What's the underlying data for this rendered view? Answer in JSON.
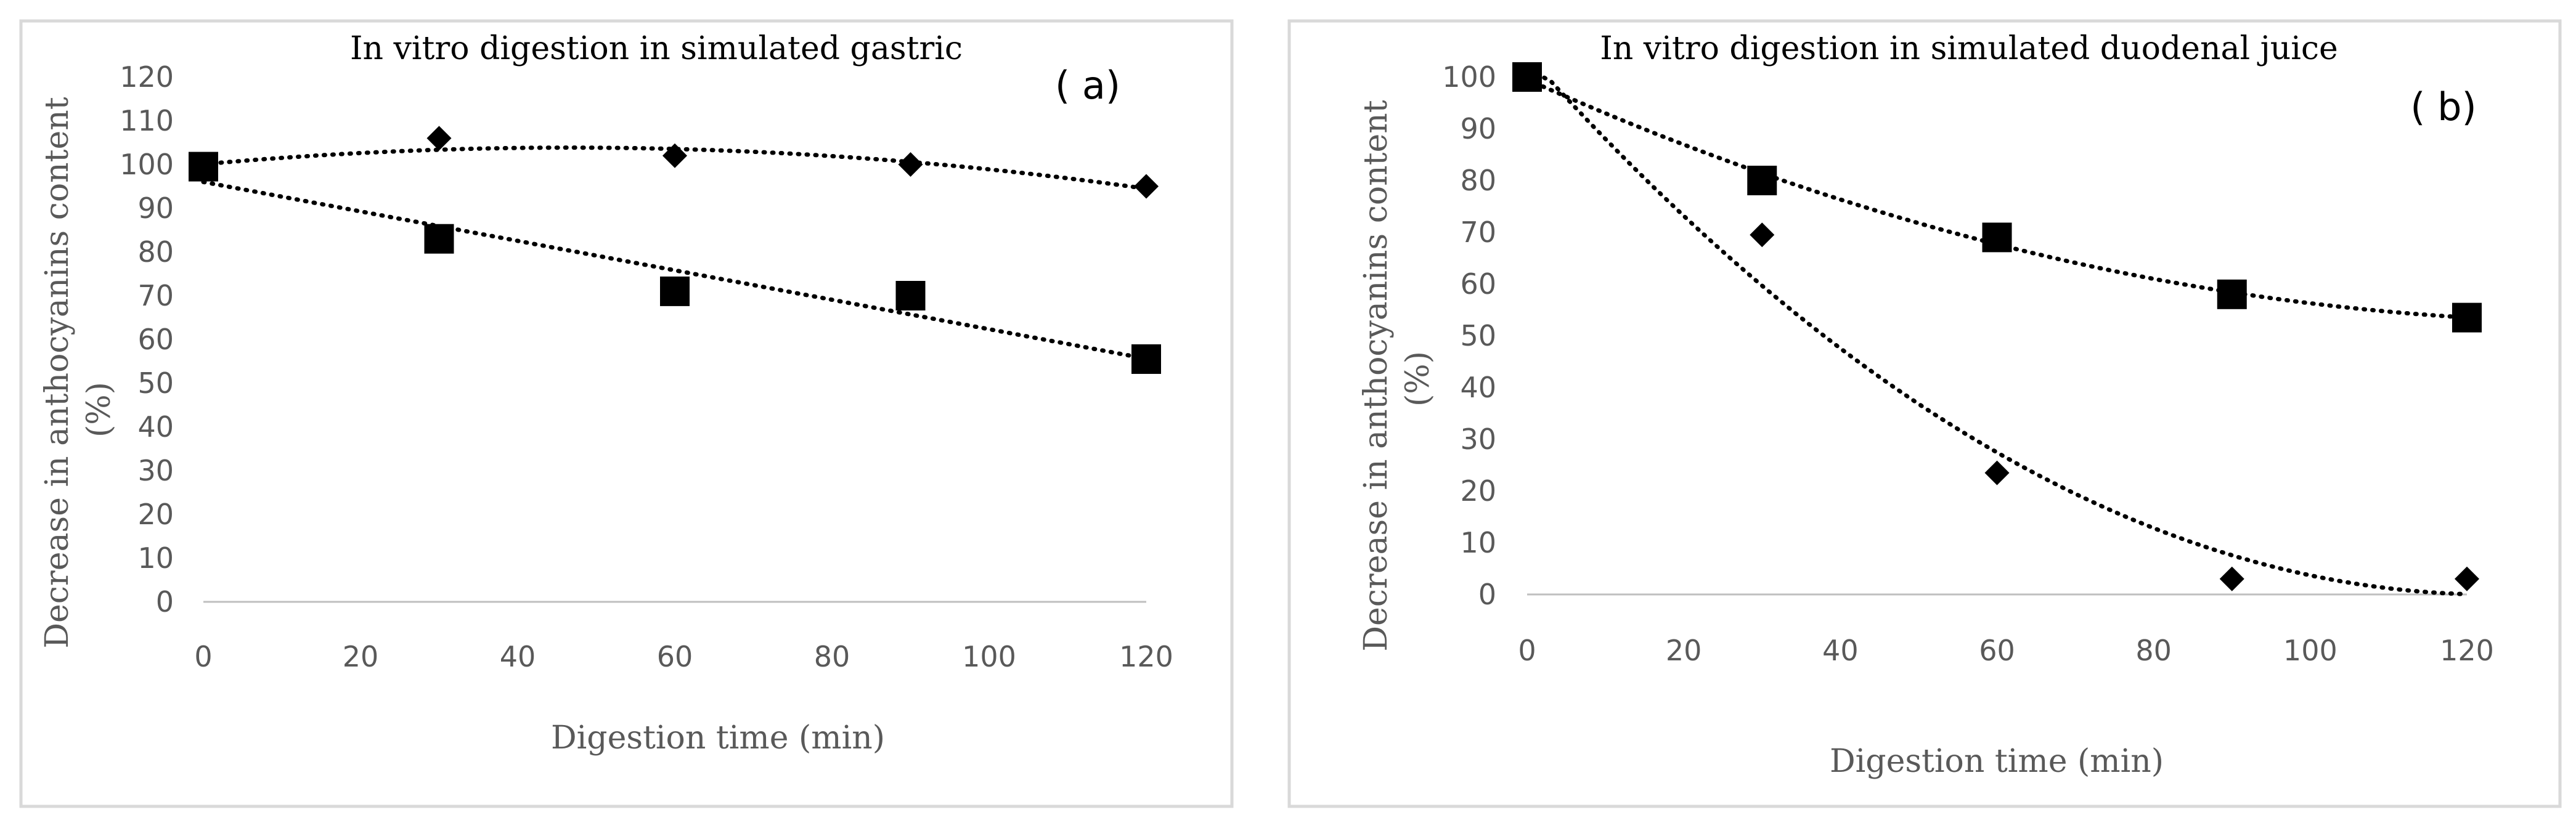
{
  "colors": {
    "frame": "#d9d9d9",
    "marker": "#000000",
    "axis_text": "#595959",
    "axis_line": "#bfbfbf",
    "trendline": "#000000"
  },
  "chart_data": [
    {
      "type": "scatter",
      "title": "In vitro digestion in simulated gastric",
      "panel_label": "( a)",
      "xlabel": "Digestion time (min)",
      "ylabel_line1": "Decrease in anthocyanins content",
      "ylabel_line2": "(%)",
      "xlim": [
        0,
        120
      ],
      "ylim": [
        0,
        120
      ],
      "x_ticks": [
        "0",
        "20",
        "40",
        "60",
        "80",
        "100",
        "120"
      ],
      "y_ticks": [
        "0",
        "10",
        "20",
        "30",
        "40",
        "50",
        "60",
        "70",
        "80",
        "90",
        "100",
        "110",
        "120"
      ],
      "series": [
        {
          "name": "Series diamond",
          "marker": "diamond",
          "x": [
            0,
            30,
            60,
            90,
            120
          ],
          "y": [
            99,
            106,
            102,
            100,
            95
          ],
          "trendline": "poly2"
        },
        {
          "name": "Series square",
          "marker": "square",
          "x": [
            0,
            30,
            60,
            90,
            120
          ],
          "y": [
            99.5,
            83,
            71,
            70,
            55.5
          ],
          "trendline": "linear"
        }
      ]
    },
    {
      "type": "scatter",
      "title": "In vitro digestion in simulated duodenal juice",
      "panel_label": "( b)",
      "xlabel": "Digestion time (min)",
      "ylabel_line1": "Decrease in anthocyanins content",
      "ylabel_line2": "(%)",
      "xlim": [
        0,
        120
      ],
      "ylim": [
        0,
        100
      ],
      "x_ticks": [
        "0",
        "20",
        "40",
        "60",
        "80",
        "100",
        "120"
      ],
      "y_ticks": [
        "0",
        "10",
        "20",
        "30",
        "40",
        "50",
        "60",
        "70",
        "80",
        "90",
        "100"
      ],
      "series": [
        {
          "name": "Series diamond",
          "marker": "diamond",
          "x": [
            0,
            30,
            60,
            90,
            120
          ],
          "y": [
            100,
            69.5,
            23.5,
            3,
            3
          ],
          "trendline": "poly2"
        },
        {
          "name": "Series square",
          "marker": "square",
          "x": [
            0,
            30,
            60,
            90,
            120
          ],
          "y": [
            100,
            80,
            69,
            58,
            53.5
          ],
          "trendline": "poly2"
        }
      ]
    }
  ]
}
